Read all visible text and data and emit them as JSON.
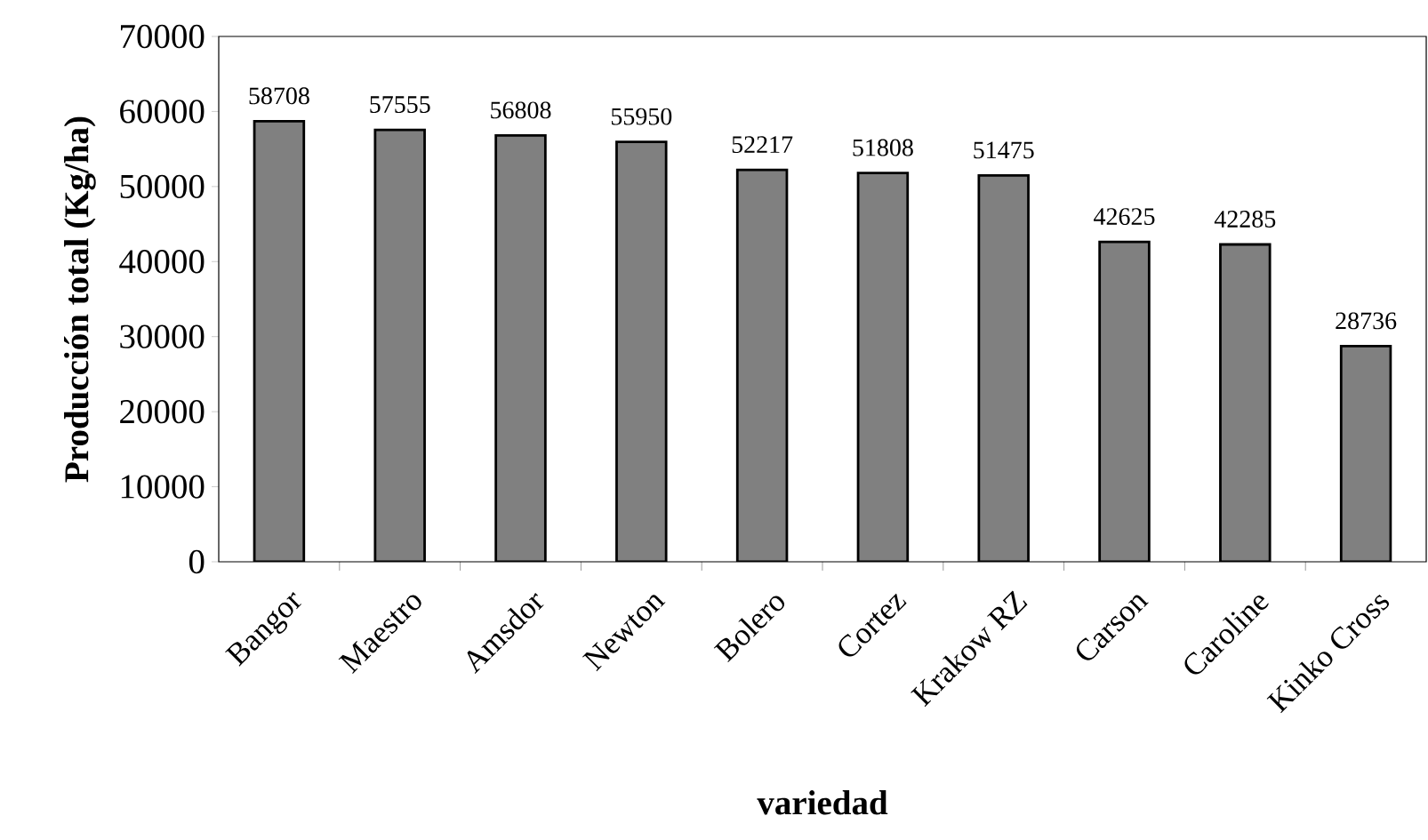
{
  "chart_data": {
    "type": "bar",
    "xlabel": "variedad",
    "ylabel": "Producción total (Kg/ha)",
    "categories": [
      "Bangor",
      "Maestro",
      "Amsdor",
      "Newton",
      "Bolero",
      "Cortez",
      "Krakow RZ",
      "Carson",
      "Caroline",
      "Kinko Cross"
    ],
    "values": [
      58708,
      57555,
      56808,
      55950,
      52217,
      51808,
      51475,
      42625,
      42285,
      28736
    ],
    "color": "#808080",
    "data_labels": true,
    "grid": false,
    "ylim": [
      0,
      70000
    ],
    "yticks": [
      0,
      10000,
      20000,
      30000,
      40000,
      50000,
      60000,
      70000
    ]
  }
}
